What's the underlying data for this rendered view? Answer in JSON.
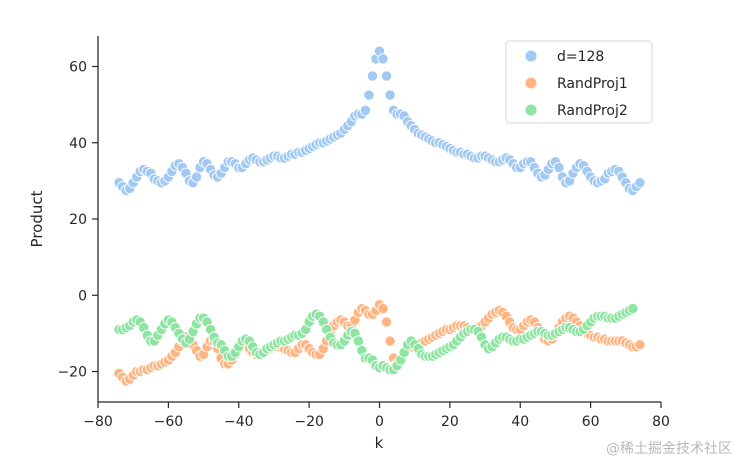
{
  "chart_data": {
    "type": "scatter",
    "title": "",
    "xlabel": "k",
    "ylabel": "Product",
    "xlim": [
      -80,
      80
    ],
    "ylim": [
      -28,
      68
    ],
    "xticks": [
      -80,
      -60,
      -40,
      -20,
      0,
      20,
      40,
      60,
      80
    ],
    "yticks": [
      -20,
      0,
      20,
      40,
      60
    ],
    "xtick_labels": [
      "−80",
      "−60",
      "−40",
      "−20",
      "0",
      "20",
      "40",
      "60",
      "80"
    ],
    "ytick_labels": [
      "−20",
      "0",
      "20",
      "40",
      "60"
    ],
    "grid": false,
    "legend_position": "top-right",
    "x": [
      -74,
      -73,
      -72,
      -71,
      -70,
      -69,
      -68,
      -67,
      -66,
      -65,
      -64,
      -63,
      -62,
      -61,
      -60,
      -59,
      -58,
      -57,
      -56,
      -55,
      -54,
      -53,
      -52,
      -51,
      -50,
      -49,
      -48,
      -47,
      -46,
      -45,
      -44,
      -43,
      -42,
      -41,
      -40,
      -39,
      -38,
      -37,
      -36,
      -35,
      -34,
      -33,
      -32,
      -31,
      -30,
      -29,
      -28,
      -27,
      -26,
      -25,
      -24,
      -23,
      -22,
      -21,
      -20,
      -19,
      -18,
      -17,
      -16,
      -15,
      -14,
      -13,
      -12,
      -11,
      -10,
      -9,
      -8,
      -7,
      -6,
      -5,
      -4,
      -3,
      -2,
      -1,
      0,
      1,
      2,
      3,
      4,
      5,
      6,
      7,
      8,
      9,
      10,
      11,
      12,
      13,
      14,
      15,
      16,
      17,
      18,
      19,
      20,
      21,
      22,
      23,
      24,
      25,
      26,
      27,
      28,
      29,
      30,
      31,
      32,
      33,
      34,
      35,
      36,
      37,
      38,
      39,
      40,
      41,
      42,
      43,
      44,
      45,
      46,
      47,
      48,
      49,
      50,
      51,
      52,
      53,
      54,
      55,
      56,
      57,
      58,
      59,
      60,
      61,
      62,
      63,
      64,
      65,
      66,
      67,
      68,
      69,
      70,
      71,
      72,
      73,
      74
    ],
    "series": [
      {
        "name": "d=128",
        "color": "#a1c9f4",
        "values": [
          29.5,
          28.5,
          27.5,
          28,
          29.5,
          31,
          32.5,
          33,
          32.5,
          32,
          30.5,
          30,
          29.5,
          30,
          31,
          32.5,
          34,
          34.5,
          33.5,
          32,
          30,
          29.5,
          31,
          33.5,
          35,
          34.5,
          33,
          31.5,
          31,
          32,
          33.5,
          35,
          35,
          34.5,
          33.5,
          33.5,
          34.5,
          35.5,
          36,
          35.5,
          35,
          35,
          35.5,
          36,
          36.5,
          36.5,
          36,
          36,
          36.5,
          37,
          37,
          37.5,
          37.5,
          38,
          38.5,
          39,
          39.5,
          40,
          40,
          40.5,
          41,
          41.5,
          42,
          42.5,
          43.5,
          44.5,
          45.5,
          47,
          47.5,
          47.5,
          48.5,
          52.5,
          57.5,
          62,
          64,
          62,
          57.5,
          52.5,
          48.5,
          47.5,
          47.5,
          47,
          45.5,
          44.5,
          43.5,
          42.5,
          42,
          41.5,
          41,
          40.5,
          40,
          40,
          39.5,
          39,
          38.5,
          38,
          37.5,
          37.5,
          37,
          37,
          36.5,
          36,
          36,
          36.5,
          36.5,
          36,
          35.5,
          35,
          35,
          35.5,
          36,
          35.5,
          34.5,
          33.5,
          33.5,
          34.5,
          35,
          35,
          33.5,
          32,
          31,
          31.5,
          33,
          34.5,
          35,
          33.5,
          31,
          29.5,
          30,
          32,
          33.5,
          34.5,
          34,
          32.5,
          31,
          30,
          29.5,
          30,
          30.5,
          32,
          32.5,
          33,
          32.5,
          31,
          29.5,
          28,
          27.5,
          28.5,
          29.5
        ]
      },
      {
        "name": "RandProj1",
        "color": "#ffb482",
        "values": [
          -20.5,
          -21.5,
          -22.5,
          -22,
          -21,
          -20,
          -20,
          -19.5,
          -19.5,
          -19,
          -18.5,
          -18.5,
          -18,
          -17.5,
          -17,
          -16,
          -15,
          -13.5,
          -12,
          -11,
          -11.5,
          -13,
          -14.5,
          -16,
          -15.5,
          -13.5,
          -12,
          -12,
          -14,
          -16.5,
          -18,
          -18,
          -17,
          -15.5,
          -14,
          -13,
          -13,
          -14,
          -15,
          -15.5,
          -15.5,
          -15,
          -14.5,
          -14,
          -13.5,
          -13.5,
          -13.5,
          -14,
          -14.5,
          -15,
          -15,
          -14,
          -13,
          -13,
          -14,
          -15,
          -15.5,
          -15.5,
          -14,
          -12,
          -10,
          -8,
          -7,
          -6.5,
          -7,
          -8,
          -8,
          -6.5,
          -4.5,
          -3.5,
          -4,
          -5,
          -5,
          -4,
          -2.5,
          -3.5,
          -7,
          -12,
          -16.5,
          -18,
          -17,
          -15,
          -14,
          -13.5,
          -13,
          -13,
          -12.5,
          -12,
          -11.5,
          -11,
          -10.5,
          -10,
          -9.5,
          -9,
          -9,
          -8.5,
          -8,
          -8,
          -8,
          -8.5,
          -9,
          -9,
          -8.5,
          -8,
          -7,
          -6,
          -5,
          -4.5,
          -4,
          -4.5,
          -5.5,
          -7,
          -8.5,
          -9,
          -9,
          -8,
          -7,
          -6.5,
          -7,
          -8.5,
          -10,
          -11.5,
          -12,
          -11.5,
          -10,
          -8.5,
          -7,
          -6,
          -5.5,
          -6,
          -7,
          -8,
          -9,
          -10,
          -10.5,
          -11,
          -11,
          -11.5,
          -11.5,
          -12,
          -12,
          -12,
          -12,
          -12,
          -12.5,
          -13,
          -13.5,
          -13.5,
          -13
        ]
      },
      {
        "name": "RandProj2",
        "color": "#8de5a1",
        "values": [
          -9,
          -9,
          -8.5,
          -8,
          -7,
          -6.5,
          -7,
          -8.5,
          -10.5,
          -12,
          -12,
          -10.5,
          -9,
          -7.5,
          -6.5,
          -7,
          -8.5,
          -10,
          -11.5,
          -12.5,
          -11.5,
          -9.5,
          -7.5,
          -6,
          -6,
          -7,
          -9,
          -11,
          -12.5,
          -13,
          -14.5,
          -16,
          -16,
          -15,
          -13.5,
          -12,
          -11.5,
          -12,
          -13.5,
          -15,
          -15.5,
          -15,
          -14,
          -13.5,
          -13,
          -12.5,
          -12,
          -12,
          -11.5,
          -11,
          -10.5,
          -10.5,
          -10,
          -9,
          -7,
          -5.5,
          -5,
          -5.5,
          -7,
          -9,
          -11,
          -12.5,
          -13,
          -13,
          -12,
          -10.5,
          -9.5,
          -10,
          -12,
          -14.5,
          -16.5,
          -16.5,
          -17,
          -18.5,
          -19,
          -18.5,
          -19,
          -19.5,
          -19.5,
          -18.5,
          -17,
          -15,
          -13,
          -12,
          -13,
          -14,
          -15.5,
          -16,
          -16,
          -16,
          -15.5,
          -15,
          -14.5,
          -14,
          -13.5,
          -13,
          -12,
          -11,
          -10,
          -9.5,
          -9,
          -9,
          -9.5,
          -11,
          -13,
          -14,
          -13.5,
          -12.5,
          -11.5,
          -11,
          -11,
          -11.5,
          -12,
          -12,
          -11.5,
          -11.5,
          -11,
          -10.5,
          -10,
          -9.5,
          -9.5,
          -10,
          -10.5,
          -10.5,
          -10,
          -9.5,
          -9,
          -8.5,
          -8.5,
          -9,
          -9.5,
          -9.5,
          -9,
          -8,
          -7,
          -6,
          -5.5,
          -5.5,
          -5.5,
          -6,
          -6,
          -6,
          -5.5,
          -5,
          -4.5,
          -4,
          -3.5
        ]
      }
    ]
  },
  "watermark": "@稀土掘金技术社区"
}
